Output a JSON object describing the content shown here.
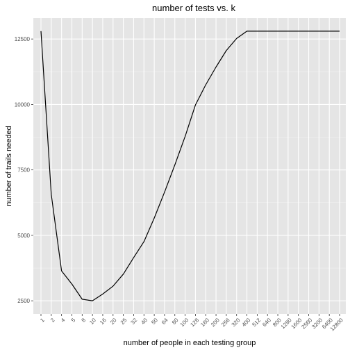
{
  "chart_data": {
    "type": "line",
    "title": "number of tests vs. k",
    "xlabel": "number of people in each testing group",
    "ylabel": "number of trails needed",
    "x_scale": "categorical",
    "categories": [
      "1",
      "2",
      "4",
      "5",
      "8",
      "10",
      "16",
      "20",
      "25",
      "32",
      "40",
      "50",
      "64",
      "80",
      "100",
      "128",
      "160",
      "200",
      "256",
      "320",
      "400",
      "512",
      "640",
      "800",
      "1280",
      "1600",
      "2560",
      "3200",
      "6400",
      "12800"
    ],
    "series": [
      {
        "values": [
          12800,
          6560,
          3640,
          3140,
          2560,
          2500,
          2760,
          3060,
          3520,
          4150,
          4760,
          5660,
          6650,
          7690,
          8780,
          9980,
          10750,
          11430,
          12060,
          12520,
          12800,
          12800,
          12800,
          12800,
          12800,
          12800,
          12800,
          12800,
          12800,
          12800
        ]
      }
    ],
    "ylim": [
      2000,
      13300
    ],
    "y_ticks": [
      2500,
      5000,
      7500,
      10000,
      12500
    ],
    "y_tick_labels": [
      "2500",
      "5000",
      "7500",
      "10000",
      "12500"
    ],
    "grid": true,
    "colors": {
      "panel_background": "#e5e5e5",
      "grid_major": "#ffffff",
      "line": "#000000",
      "tick_text": "#4d4d4d",
      "tick_mark": "#333333"
    }
  }
}
